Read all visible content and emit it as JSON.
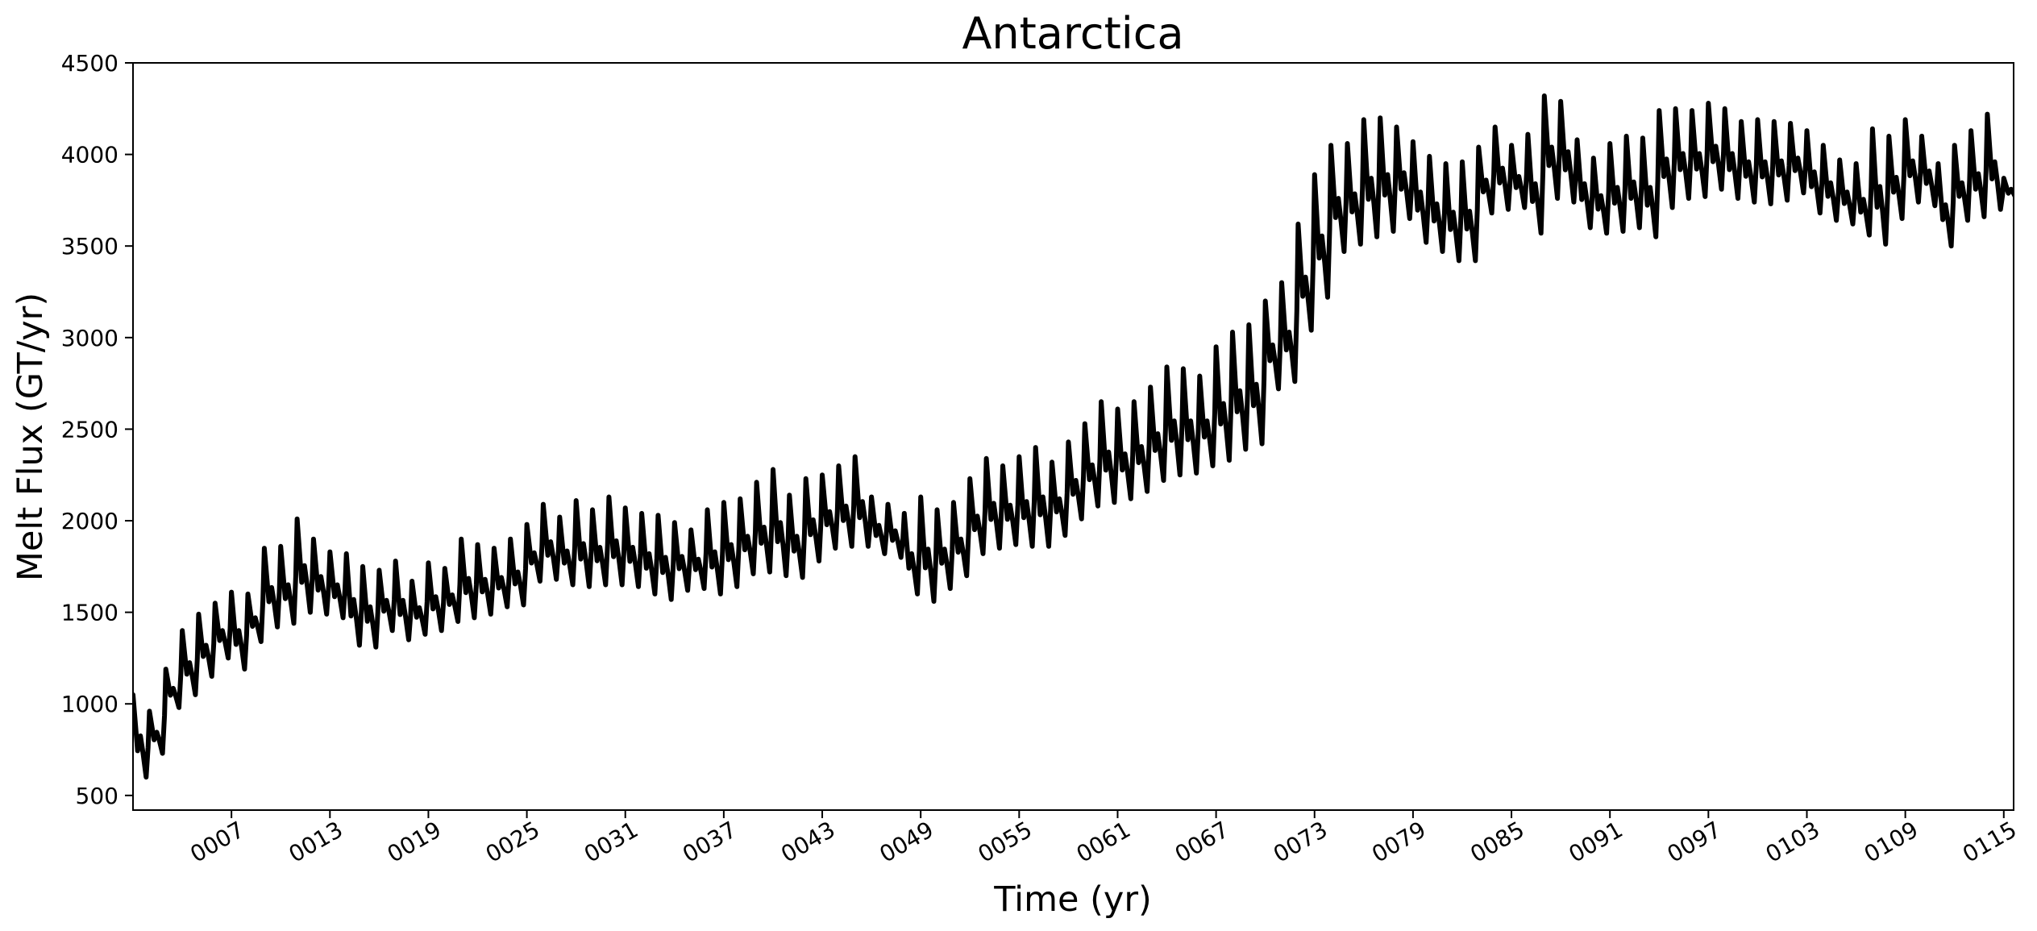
{
  "chart_data": {
    "type": "line",
    "title": "Antarctica",
    "xlabel": "Time (yr)",
    "ylabel": "Melt Flux (GT/yr)",
    "xlim": [
      1,
      115.6
    ],
    "ylim": [
      420,
      4500
    ],
    "yticks": [
      500,
      1000,
      1500,
      2000,
      2500,
      3000,
      3500,
      4000,
      4500
    ],
    "xticks": [
      {
        "value": 7,
        "label": "0007"
      },
      {
        "value": 13,
        "label": "0013"
      },
      {
        "value": 19,
        "label": "0019"
      },
      {
        "value": 25,
        "label": "0025"
      },
      {
        "value": 31,
        "label": "0031"
      },
      {
        "value": 37,
        "label": "0037"
      },
      {
        "value": 43,
        "label": "0043"
      },
      {
        "value": 49,
        "label": "0049"
      },
      {
        "value": 55,
        "label": "0055"
      },
      {
        "value": 61,
        "label": "0061"
      },
      {
        "value": 67,
        "label": "0067"
      },
      {
        "value": 73,
        "label": "0073"
      },
      {
        "value": 79,
        "label": "0079"
      },
      {
        "value": 85,
        "label": "0085"
      },
      {
        "value": 91,
        "label": "0091"
      },
      {
        "value": 97,
        "label": "0097"
      },
      {
        "value": 103,
        "label": "0103"
      },
      {
        "value": 109,
        "label": "0109"
      },
      {
        "value": 115,
        "label": "0115"
      }
    ],
    "grid": false,
    "line_color": "#000000",
    "series": [
      {
        "x": [
          1,
          2,
          3,
          4,
          5,
          6,
          7,
          8,
          9,
          10,
          11,
          12,
          13,
          14,
          15,
          16,
          17,
          18,
          19,
          20,
          21,
          22,
          23,
          24,
          25,
          26,
          27,
          28,
          29,
          30,
          31,
          32,
          33,
          34,
          35,
          36,
          37,
          38,
          39,
          40,
          41,
          42,
          43,
          44,
          45,
          46,
          47,
          48,
          49,
          50,
          51,
          52,
          53,
          54,
          55,
          56,
          57,
          58,
          59,
          60,
          61,
          62,
          63,
          64,
          65,
          66,
          67,
          68,
          69,
          70,
          71,
          72,
          73,
          74,
          75,
          76,
          77,
          78,
          79,
          80,
          81,
          82,
          83,
          84,
          85,
          86,
          87,
          88,
          89,
          90,
          91,
          92,
          93,
          94,
          95,
          96,
          97,
          98,
          99,
          100,
          101,
          102,
          103,
          104,
          105,
          106,
          107,
          108,
          109,
          110,
          111,
          112,
          113,
          114,
          115
        ],
        "peak": [
          1050,
          960,
          1190,
          1400,
          1490,
          1550,
          1610,
          1600,
          1850,
          1860,
          2010,
          1900,
          1830,
          1820,
          1750,
          1730,
          1780,
          1670,
          1770,
          1740,
          1900,
          1870,
          1850,
          1900,
          1980,
          2090,
          2020,
          2110,
          2060,
          2130,
          2070,
          2040,
          2030,
          1990,
          1950,
          2060,
          2100,
          2120,
          2210,
          2280,
          2140,
          2230,
          2250,
          2300,
          2350,
          2130,
          2090,
          2040,
          2130,
          2060,
          2100,
          2230,
          2340,
          2300,
          2350,
          2400,
          2320,
          2430,
          2530,
          2650,
          2610,
          2650,
          2730,
          2840,
          2830,
          2790,
          2950,
          3030,
          3070,
          3200,
          3300,
          3620,
          3890,
          4050,
          4060,
          4190,
          4200,
          4150,
          4070,
          3990,
          3950,
          3960,
          4040,
          4150,
          4050,
          4110,
          4320,
          4290,
          4080,
          3980,
          4060,
          4100,
          4090,
          4240,
          4250,
          4240,
          4280,
          4250,
          4180,
          4190,
          4180,
          4170,
          4130,
          4050,
          3970,
          3950,
          4140,
          4100,
          4190,
          4100,
          3950,
          4050,
          4130,
          4220,
          3870
        ],
        "trough": [
          600,
          730,
          980,
          1050,
          1150,
          1250,
          1190,
          1340,
          1420,
          1440,
          1500,
          1490,
          1470,
          1320,
          1310,
          1400,
          1350,
          1380,
          1400,
          1450,
          1470,
          1490,
          1530,
          1540,
          1670,
          1680,
          1650,
          1640,
          1650,
          1650,
          1640,
          1600,
          1570,
          1620,
          1630,
          1600,
          1640,
          1710,
          1720,
          1700,
          1690,
          1780,
          1850,
          1860,
          1860,
          1820,
          1800,
          1600,
          1560,
          1630,
          1700,
          1820,
          1850,
          1870,
          1860,
          1860,
          1920,
          2010,
          2080,
          2100,
          2120,
          2160,
          2220,
          2250,
          2260,
          2300,
          2330,
          2390,
          2420,
          2720,
          2760,
          3040,
          3220,
          3470,
          3510,
          3550,
          3580,
          3650,
          3520,
          3470,
          3420,
          3420,
          3680,
          3700,
          3710,
          3570,
          3760,
          3740,
          3600,
          3570,
          3580,
          3600,
          3550,
          3710,
          3760,
          3770,
          3810,
          3760,
          3740,
          3730,
          3750,
          3790,
          3680,
          3640,
          3620,
          3560,
          3510,
          3650,
          3740,
          3720,
          3500,
          3640,
          3660,
          3700,
          3750
        ]
      }
    ]
  }
}
